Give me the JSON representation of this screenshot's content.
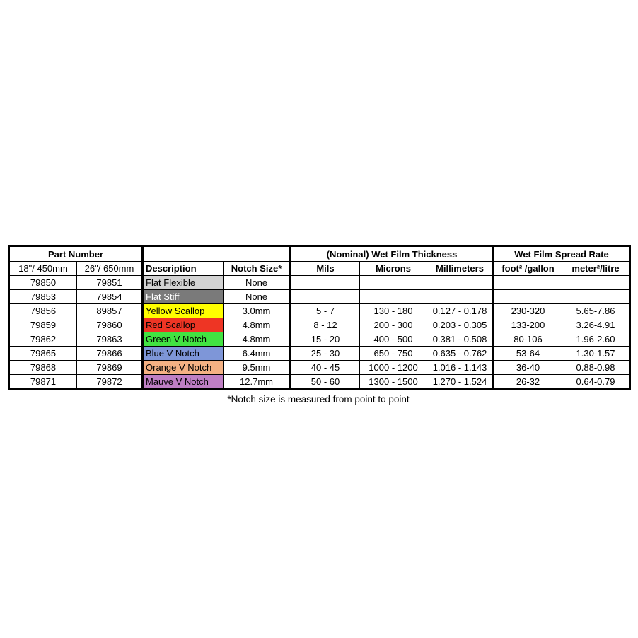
{
  "page": {
    "background": "#ffffff",
    "border_color": "#000000"
  },
  "table": {
    "group_headers": [
      {
        "label": "Part Number",
        "span": 2
      },
      {
        "label": "",
        "span": 2
      },
      {
        "label": "(Nominal) Wet Film Thickness",
        "span": 3
      },
      {
        "label": "Wet Film Spread Rate",
        "span": 2
      }
    ],
    "column_headers": [
      "18\"/ 450mm",
      "26\"/ 650mm",
      "Description",
      "Notch Size*",
      "Mils",
      "Microns",
      "Millimeters",
      "foot² /gallon",
      "meter²/litre"
    ],
    "rows": [
      {
        "part_18": "79850",
        "part_26": "79851",
        "description": "Flat Flexible",
        "desc_bg": "#d3d3d3",
        "desc_text_color": "#000000",
        "notch_size": "None",
        "mils": "",
        "microns": "",
        "millimeters": "",
        "foot2_per_gallon": "",
        "meter2_per_litre": ""
      },
      {
        "part_18": "79853",
        "part_26": "79854",
        "description": "Flat Stiff",
        "desc_bg": "#7a7a7a",
        "desc_text_color": "#ffffff",
        "notch_size": "None",
        "mils": "",
        "microns": "",
        "millimeters": "",
        "foot2_per_gallon": "",
        "meter2_per_litre": ""
      },
      {
        "part_18": "79856",
        "part_26": "89857",
        "description": "Yellow Scallop",
        "desc_bg": "#ffff00",
        "desc_text_color": "#000000",
        "notch_size": "3.0mm",
        "mils": "5 - 7",
        "microns": "130 - 180",
        "millimeters": "0.127 - 0.178",
        "foot2_per_gallon": "230-320",
        "meter2_per_litre": "5.65-7.86"
      },
      {
        "part_18": "79859",
        "part_26": "79860",
        "description": "Red Scallop",
        "desc_bg": "#ee3524",
        "desc_text_color": "#000000",
        "notch_size": "4.8mm",
        "mils": "8 - 12",
        "microns": "200 - 300",
        "millimeters": "0.203 - 0.305",
        "foot2_per_gallon": "133-200",
        "meter2_per_litre": "3.26-4.91"
      },
      {
        "part_18": "79862",
        "part_26": "79863",
        "description": "Green V Notch",
        "desc_bg": "#42e342",
        "desc_text_color": "#000000",
        "notch_size": "4.8mm",
        "mils": "15 - 20",
        "microns": "400 - 500",
        "millimeters": "0.381 - 0.508",
        "foot2_per_gallon": "80-106",
        "meter2_per_litre": "1.96-2.60"
      },
      {
        "part_18": "79865",
        "part_26": "79866",
        "description": "Blue V Notch",
        "desc_bg": "#7e96d8",
        "desc_text_color": "#000000",
        "notch_size": "6.4mm",
        "mils": "25 - 30",
        "microns": "650 - 750",
        "millimeters": "0.635 - 0.762",
        "foot2_per_gallon": "53-64",
        "meter2_per_litre": "1.30-1.57"
      },
      {
        "part_18": "79868",
        "part_26": "79869",
        "description": "Orange V Notch",
        "desc_bg": "#f4b183",
        "desc_text_color": "#000000",
        "notch_size": "9.5mm",
        "mils": "40 - 45",
        "microns": "1000 - 1200",
        "millimeters": "1.016 - 1.143",
        "foot2_per_gallon": "36-40",
        "meter2_per_litre": "0.88-0.98"
      },
      {
        "part_18": "79871",
        "part_26": "79872",
        "description": "Mauve V Notch",
        "desc_bg": "#bf7fc4",
        "desc_text_color": "#000000",
        "notch_size": "12.7mm",
        "mils": "50 - 60",
        "microns": "1300 - 1500",
        "millimeters": "1.270 - 1.524",
        "foot2_per_gallon": "26-32",
        "meter2_per_litre": "0.64-0.79"
      }
    ],
    "footnote": "*Notch size is measured from point to point"
  }
}
